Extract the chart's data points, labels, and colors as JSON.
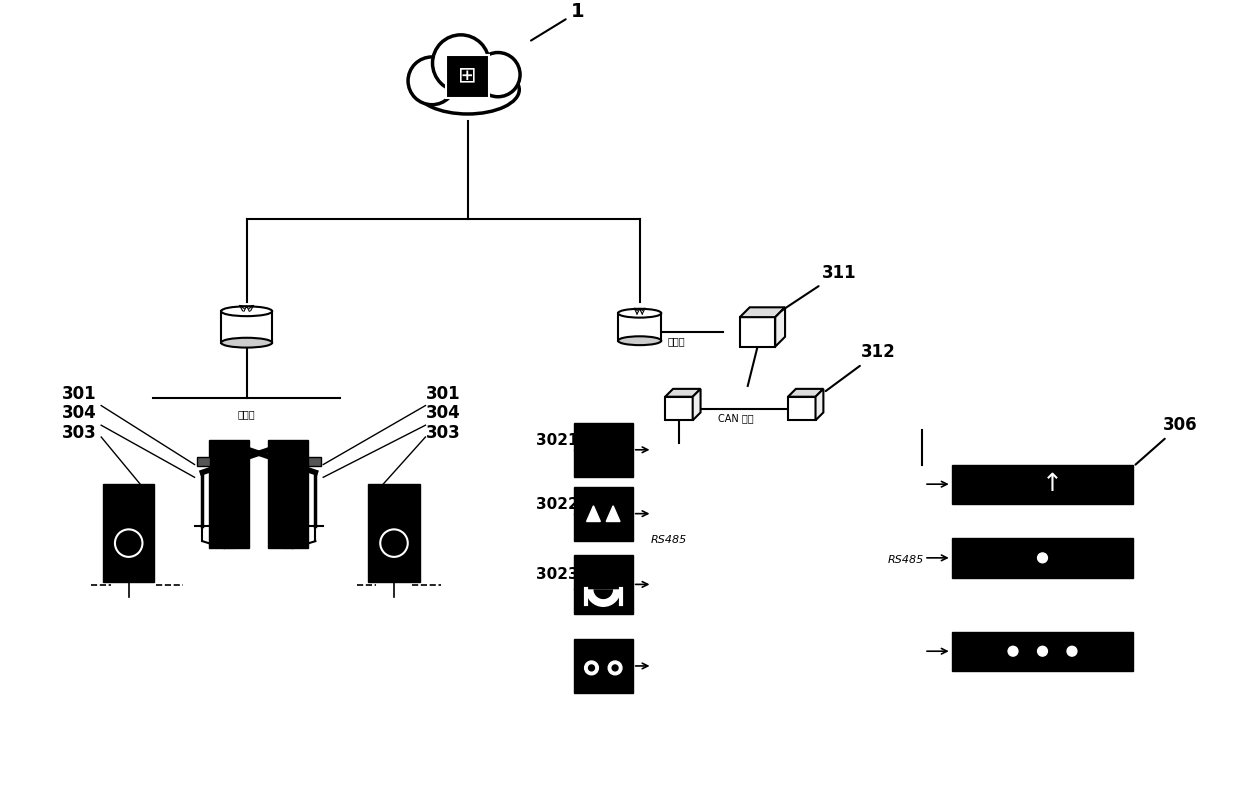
{
  "bg_color": "#ffffff",
  "label_1": "1",
  "label_301": "301",
  "label_303": "303",
  "label_304": "304",
  "label_311": "311",
  "label_312": "312",
  "label_306": "306",
  "label_3021": "3021",
  "label_3022": "3022",
  "label_3023": "3023",
  "label_ethernet": "以太网",
  "label_can": "CAN 总线",
  "label_rs485_1": "RS485",
  "label_rs485_2": "RS485"
}
